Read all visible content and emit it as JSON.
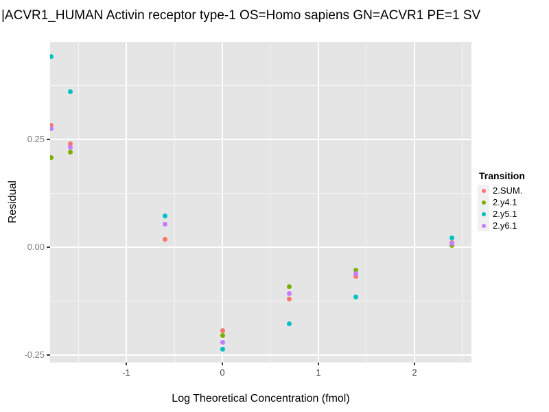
{
  "title": "|ACVR1_HUMAN Activin receptor type-1 OS=Homo sapiens GN=ACVR1 PE=1 SV",
  "chart_data": {
    "type": "scatter",
    "title": "|ACVR1_HUMAN Activin receptor type-1 OS=Homo sapiens GN=ACVR1 PE=1 SV",
    "xlabel": "Log Theoretical Concentration (fmol)",
    "ylabel": "Residual",
    "xlim": [
      -1.793,
      2.593
    ],
    "ylim": [
      -0.2675,
      0.476
    ],
    "x_ticks": [
      -1,
      0,
      1,
      2
    ],
    "x_tick_labels": [
      "-1",
      "0",
      "1",
      "2"
    ],
    "x_minor_ticks": [
      -1.5,
      -0.5,
      0.5,
      1.5,
      2.5
    ],
    "y_ticks": [
      0.25,
      0,
      -0.25
    ],
    "y_tick_labels": [
      "0.25",
      "0.00",
      "-0.25"
    ],
    "y_minor_ticks": [
      0.375,
      0.125,
      -0.125
    ],
    "grid": true,
    "legend_title": "Transition",
    "legend_position": "right",
    "series": [
      {
        "name": "2.SUM.",
        "color": "#F8766D",
        "points": [
          [
            -1.785,
            0.282
          ],
          [
            -1.58,
            0.24
          ],
          [
            -0.593,
            0.019
          ],
          [
            0,
            -0.193
          ],
          [
            0.7,
            -0.121
          ],
          [
            1.386,
            -0.068
          ],
          [
            2.386,
            0.01
          ]
        ]
      },
      {
        "name": "2.y4.1",
        "color": "#7CAE00",
        "points": [
          [
            -1.785,
            0.207
          ],
          [
            -1.58,
            0.221
          ],
          [
            0,
            -0.205
          ],
          [
            0.7,
            -0.092
          ],
          [
            1.386,
            -0.054
          ],
          [
            2.386,
            0.004
          ]
        ]
      },
      {
        "name": "2.y5.1",
        "color": "#00BFC4",
        "points": [
          [
            -1.785,
            0.441
          ],
          [
            -1.58,
            0.361
          ],
          [
            -0.593,
            0.073
          ],
          [
            0,
            -0.237
          ],
          [
            0.7,
            -0.178
          ],
          [
            1.386,
            -0.116
          ],
          [
            2.386,
            0.021
          ]
        ]
      },
      {
        "name": "2.y6.1",
        "color": "#C77CFF",
        "points": [
          [
            -1.785,
            0.274
          ],
          [
            -1.58,
            0.231
          ],
          [
            -0.593,
            0.053
          ],
          [
            0,
            -0.221
          ],
          [
            0.7,
            -0.108
          ],
          [
            1.386,
            -0.061
          ],
          [
            2.386,
            0.008
          ]
        ]
      }
    ],
    "colors": {
      "panel_bg": "#E5E5E5",
      "grid_major": "#FFFFFF",
      "grid_minor": "#FFFFFF",
      "tick_mark": "#333333",
      "x_tick_text": "#474747",
      "y_tick_text": "#7B7B7B",
      "title_text": "#000000",
      "legend_key_bg": "#F0F0F0"
    }
  }
}
